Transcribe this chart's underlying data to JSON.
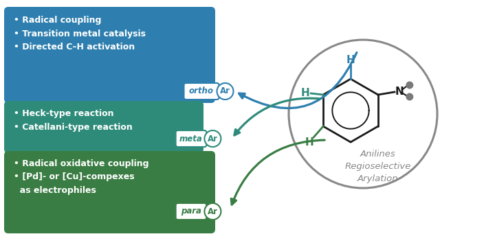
{
  "box_ortho_color": "#2e7faf",
  "box_meta_color": "#2e8b7a",
  "box_para_color": "#3a7d44",
  "ortho_text": "• Radical coupling\n• Transition metal catalysis\n• Directed C–H activation",
  "meta_text": "• Heck-type reaction\n• Catellani-type reaction",
  "para_text": "• Radical oxidative coupling\n• [Pd]- or [Cu]-compexes\n  as electrophiles",
  "H_ortho_color": "#2e7faf",
  "H_meta_color": "#2e8b7a",
  "H_para_color": "#3a7d44",
  "bond_color": "#1a1a1a",
  "gray_color": "#888888",
  "aniline_title": "Anilines\nRegioselective\nArylation",
  "outer_border_color": "#aaaaaa"
}
